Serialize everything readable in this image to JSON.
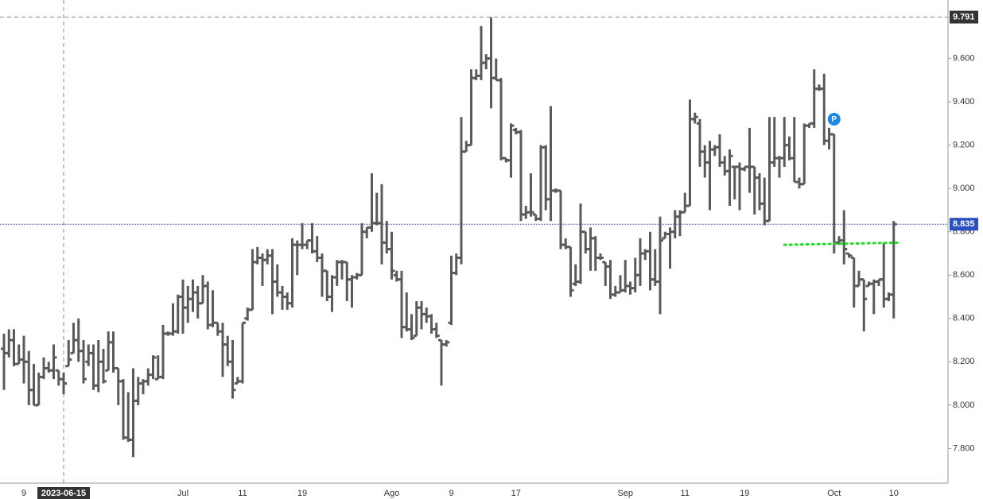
{
  "chart_data": {
    "type": "ohlc",
    "color": "#5a5a5a",
    "ylim": [
      7.64,
      9.87
    ],
    "yticks": [
      {
        "value": 7.8,
        "label": "7.800"
      },
      {
        "value": 8.0,
        "label": "8.000"
      },
      {
        "value": 8.2,
        "label": "8.200"
      },
      {
        "value": 8.4,
        "label": "8.400"
      },
      {
        "value": 8.6,
        "label": "8.600"
      },
      {
        "value": 8.8,
        "label": "8.800"
      },
      {
        "value": 9.0,
        "label": "9.000"
      },
      {
        "value": 9.2,
        "label": "9.200"
      },
      {
        "value": 9.4,
        "label": "9.400"
      },
      {
        "value": 9.6,
        "label": "9.600"
      }
    ],
    "categories": [
      null,
      null,
      null,
      null,
      "9",
      null,
      null,
      null,
      null,
      null,
      null,
      null,
      "2023-06-15",
      null,
      null,
      null,
      null,
      null,
      null,
      null,
      null,
      null,
      null,
      null,
      null,
      null,
      null,
      null,
      null,
      null,
      null,
      null,
      null,
      null,
      null,
      null,
      "Jul",
      null,
      null,
      null,
      null,
      null,
      null,
      null,
      null,
      null,
      null,
      null,
      "11",
      null,
      null,
      null,
      null,
      null,
      null,
      null,
      null,
      null,
      null,
      null,
      "19",
      null,
      null,
      null,
      null,
      null,
      null,
      null,
      null,
      null,
      null,
      null,
      null,
      null,
      null,
      null,
      null,
      null,
      "Ago",
      null,
      null,
      null,
      null,
      null,
      null,
      null,
      null,
      null,
      null,
      null,
      "9",
      null,
      null,
      null,
      null,
      null,
      null,
      null,
      null,
      null,
      null,
      null,
      null,
      "17",
      null,
      null,
      null,
      null,
      null,
      null,
      null,
      null,
      null,
      null,
      null,
      null,
      null,
      null,
      null,
      null,
      null,
      null,
      null,
      null,
      null,
      "Sep",
      null,
      null,
      null,
      null,
      null,
      null,
      null,
      null,
      null,
      null,
      null,
      "11",
      null,
      null,
      null,
      null,
      null,
      null,
      null,
      null,
      null,
      null,
      null,
      "19",
      null,
      null,
      null,
      null,
      null,
      null,
      null,
      null,
      null,
      null,
      null,
      null,
      null,
      null,
      null,
      null,
      null,
      "Oct",
      null,
      null,
      null,
      null,
      null,
      null,
      null,
      null,
      null,
      null,
      null,
      "10"
    ],
    "open": [
      8.26,
      8.24,
      8.3,
      8.19,
      8.21,
      8.2,
      8.07,
      8.0,
      8.13,
      8.17,
      8.16,
      8.16,
      8.12,
      8.18,
      8.24,
      8.3,
      8.25,
      8.2,
      8.24,
      8.09,
      8.2,
      8.16,
      8.29,
      8.17,
      8.11,
      7.85,
      7.84,
      8.02,
      8.1,
      8.11,
      8.14,
      8.12,
      8.13,
      8.33,
      8.33,
      8.34,
      8.5,
      8.45,
      8.49,
      8.52,
      8.47,
      8.55,
      8.37,
      8.38,
      8.34,
      8.28,
      8.2,
      8.1,
      8.11,
      8.4,
      8.44,
      8.66,
      8.68,
      8.67,
      8.69,
      8.57,
      8.52,
      8.5,
      8.47,
      8.74,
      8.74,
      8.74,
      8.76,
      8.71,
      8.68,
      8.62,
      8.5,
      8.59,
      8.66,
      8.66,
      8.58,
      8.59,
      8.6,
      8.8,
      8.82,
      8.84,
      8.84,
      8.75,
      8.72,
      8.6,
      8.58,
      8.36,
      8.35,
      8.32,
      8.45,
      8.42,
      8.41,
      8.35,
      8.3,
      8.28,
      8.38,
      8.61,
      8.68,
      9.17,
      9.2,
      9.51,
      9.52,
      9.58,
      9.6,
      9.51,
      9.5,
      9.14,
      9.13,
      9.27,
      9.26,
      8.88,
      8.89,
      8.88,
      8.86,
      9.19,
      8.95,
      8.99,
      8.99,
      8.74,
      8.73,
      8.56,
      8.57,
      8.8,
      8.72,
      8.77,
      8.68,
      8.66,
      8.64,
      8.51,
      8.52,
      8.53,
      8.55,
      8.54,
      8.6,
      8.7,
      8.71,
      8.58,
      8.57,
      8.77,
      8.79,
      8.8,
      8.87,
      8.89,
      8.92,
      9.32,
      9.3,
      9.17,
      9.12,
      9.18,
      9.19,
      9.12,
      9.08,
      9.1,
      9.1,
      9.09,
      9.1,
      9.1,
      9.05,
      8.93,
      8.85,
      9.12,
      9.14,
      9.14,
      9.2,
      9.14,
      9.03,
      9.02,
      9.29,
      9.3,
      9.46,
      9.46,
      9.22,
      9.25,
      8.75,
      8.76,
      8.7,
      8.68,
      8.55,
      8.58,
      8.55,
      8.56,
      8.57,
      8.58,
      8.49,
      8.51
    ],
    "high": [
      8.33,
      8.35,
      8.35,
      8.28,
      8.32,
      8.25,
      8.19,
      8.15,
      8.22,
      8.2,
      8.28,
      8.16,
      8.15,
      8.3,
      8.38,
      8.4,
      8.3,
      8.28,
      8.28,
      8.3,
      8.26,
      8.34,
      8.34,
      8.17,
      8.12,
      8.06,
      8.17,
      8.13,
      8.12,
      8.17,
      8.23,
      8.23,
      8.37,
      8.34,
      8.47,
      8.51,
      8.58,
      8.55,
      8.58,
      8.55,
      8.6,
      8.57,
      8.53,
      8.38,
      8.38,
      8.32,
      8.3,
      8.13,
      8.38,
      8.45,
      8.72,
      8.73,
      8.7,
      8.72,
      8.72,
      8.65,
      8.55,
      8.52,
      8.77,
      8.76,
      8.84,
      8.76,
      8.84,
      8.78,
      8.7,
      8.62,
      8.6,
      8.67,
      8.67,
      8.66,
      8.6,
      8.61,
      8.84,
      8.82,
      9.07,
      8.98,
      9.02,
      8.85,
      8.8,
      8.62,
      8.62,
      8.52,
      8.42,
      8.48,
      8.48,
      8.45,
      8.42,
      8.38,
      8.3,
      8.3,
      8.69,
      8.7,
      9.33,
      9.22,
      9.55,
      9.55,
      9.75,
      9.62,
      9.79,
      9.6,
      9.51,
      9.14,
      9.3,
      9.28,
      9.27,
      8.92,
      9.07,
      8.88,
      9.2,
      9.2,
      9.38,
      9.0,
      8.99,
      8.77,
      8.73,
      8.65,
      8.93,
      8.8,
      8.82,
      8.78,
      8.7,
      8.66,
      8.67,
      8.55,
      8.6,
      8.67,
      8.57,
      8.68,
      8.77,
      8.72,
      8.8,
      8.72,
      8.87,
      8.8,
      8.82,
      8.9,
      8.9,
      8.98,
      9.41,
      9.35,
      9.32,
      9.2,
      9.22,
      9.2,
      9.25,
      9.15,
      9.18,
      9.1,
      9.12,
      9.1,
      9.28,
      9.1,
      9.07,
      9.05,
      9.33,
      9.33,
      9.15,
      9.33,
      9.24,
      9.33,
      9.05,
      9.3,
      9.3,
      9.55,
      9.48,
      9.53,
      9.28,
      9.25,
      8.78,
      8.9,
      8.7,
      8.68,
      8.62,
      8.58,
      8.57,
      8.58,
      8.58,
      8.75,
      8.52,
      8.85
    ],
    "low": [
      8.07,
      8.22,
      8.18,
      8.19,
      8.1,
      8.0,
      8.0,
      8.0,
      8.12,
      8.15,
      8.12,
      8.09,
      8.05,
      8.18,
      8.24,
      8.2,
      8.1,
      8.18,
      8.07,
      8.06,
      8.1,
      8.16,
      8.15,
      8.0,
      7.84,
      7.83,
      7.76,
      8.0,
      8.05,
      8.09,
      8.12,
      8.12,
      8.12,
      8.32,
      8.32,
      8.33,
      8.33,
      8.38,
      8.43,
      8.4,
      8.47,
      8.35,
      8.36,
      8.32,
      8.13,
      8.18,
      8.03,
      8.1,
      8.1,
      8.39,
      8.44,
      8.65,
      8.55,
      8.65,
      8.42,
      8.5,
      8.44,
      8.44,
      8.45,
      8.6,
      8.72,
      8.72,
      8.7,
      8.66,
      8.5,
      8.48,
      8.43,
      8.55,
      8.58,
      8.48,
      8.45,
      8.58,
      8.6,
      8.77,
      8.8,
      8.83,
      8.65,
      8.7,
      8.58,
      8.57,
      8.31,
      8.34,
      8.3,
      8.32,
      8.35,
      8.38,
      8.33,
      8.31,
      8.09,
      8.27,
      8.37,
      8.6,
      8.65,
      9.17,
      9.2,
      9.5,
      9.5,
      9.55,
      9.37,
      9.5,
      9.13,
      9.12,
      9.05,
      9.25,
      8.85,
      8.86,
      8.87,
      8.85,
      8.85,
      8.9,
      8.85,
      8.98,
      8.72,
      8.72,
      8.5,
      8.55,
      8.56,
      8.7,
      8.62,
      8.62,
      8.67,
      8.55,
      8.49,
      8.5,
      8.52,
      8.52,
      8.51,
      8.52,
      8.55,
      8.67,
      8.53,
      8.55,
      8.42,
      8.77,
      8.63,
      8.77,
      8.78,
      8.89,
      8.92,
      9.3,
      9.1,
      9.05,
      8.9,
      9.15,
      9.1,
      9.06,
      8.92,
      8.95,
      8.9,
      9.08,
      8.98,
      8.88,
      8.9,
      8.83,
      8.85,
      9.1,
      9.05,
      9.1,
      9.13,
      9.03,
      9.0,
      9.02,
      9.28,
      9.28,
      9.45,
      9.2,
      9.18,
      8.7,
      8.74,
      8.65,
      8.68,
      8.45,
      8.55,
      8.34,
      8.55,
      8.42,
      8.55,
      8.45,
      8.48,
      8.4
    ],
    "close": [
      8.24,
      8.3,
      8.19,
      8.21,
      8.2,
      8.07,
      8.0,
      8.13,
      8.17,
      8.16,
      8.22,
      8.12,
      8.1,
      8.21,
      8.3,
      8.25,
      8.12,
      8.24,
      8.09,
      8.2,
      8.11,
      8.29,
      8.17,
      8.11,
      7.85,
      7.84,
      8.02,
      8.1,
      8.11,
      8.14,
      8.22,
      8.13,
      8.33,
      8.33,
      8.34,
      8.5,
      8.45,
      8.49,
      8.52,
      8.47,
      8.55,
      8.37,
      8.38,
      8.34,
      8.28,
      8.2,
      8.07,
      8.11,
      8.38,
      8.44,
      8.66,
      8.68,
      8.67,
      8.69,
      8.57,
      8.52,
      8.5,
      8.47,
      8.74,
      8.74,
      8.74,
      8.76,
      8.71,
      8.68,
      8.62,
      8.5,
      8.59,
      8.66,
      8.66,
      8.58,
      8.59,
      8.6,
      8.8,
      8.82,
      8.84,
      8.84,
      8.75,
      8.72,
      8.62,
      8.58,
      8.36,
      8.35,
      8.31,
      8.45,
      8.42,
      8.41,
      8.35,
      8.32,
      8.28,
      8.29,
      8.61,
      8.68,
      9.17,
      9.2,
      9.51,
      9.52,
      9.58,
      9.6,
      9.51,
      9.5,
      9.14,
      9.13,
      9.29,
      9.26,
      8.88,
      8.89,
      8.89,
      8.86,
      9.19,
      8.95,
      8.99,
      8.99,
      8.74,
      8.73,
      8.53,
      8.57,
      8.8,
      8.72,
      8.77,
      8.68,
      8.68,
      8.64,
      8.51,
      8.52,
      8.53,
      8.55,
      8.54,
      8.6,
      8.7,
      8.71,
      8.58,
      8.57,
      8.76,
      8.79,
      8.8,
      8.87,
      8.89,
      8.92,
      9.32,
      9.33,
      9.17,
      9.12,
      9.18,
      9.19,
      9.12,
      9.08,
      9.15,
      9.1,
      9.09,
      9.1,
      9.1,
      9.05,
      8.93,
      8.85,
      9.12,
      9.14,
      9.14,
      9.2,
      9.14,
      9.03,
      9.02,
      9.29,
      9.3,
      9.46,
      9.46,
      9.22,
      9.25,
      8.75,
      8.76,
      8.72,
      8.69,
      8.55,
      8.58,
      8.49,
      8.56,
      8.57,
      8.58,
      8.49,
      8.51,
      8.835
    ],
    "crosshair": {
      "x": "2023-06-15",
      "y": 9.791
    },
    "last_price_color": "#2a4fc0",
    "trend_line": {
      "color": "#22dd22",
      "x_index": [
        157,
        180
      ],
      "values": [
        8.74,
        8.75
      ]
    },
    "markers": [
      {
        "label": "P",
        "index": 167,
        "value": 9.32,
        "color": "#1e88e5"
      }
    ]
  }
}
